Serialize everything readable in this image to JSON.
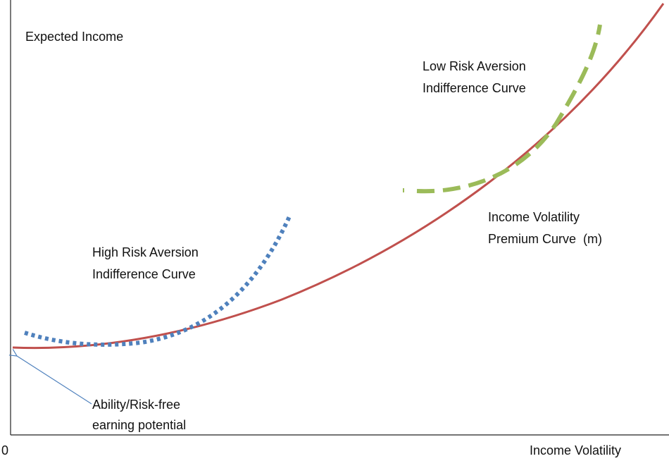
{
  "axes": {
    "y_label": "Expected Income",
    "x_label": "Income Volatility",
    "origin": "0"
  },
  "curves": {
    "low_risk": [
      "Low Risk Aversion",
      "Indifference Curve"
    ],
    "premium": [
      "Income Volatility",
      "Premium Curve  (m)"
    ],
    "high_risk": [
      "High Risk Aversion",
      "Indifference Curve"
    ]
  },
  "annotation": [
    "Ability/Risk-free",
    "earning potential"
  ]
}
